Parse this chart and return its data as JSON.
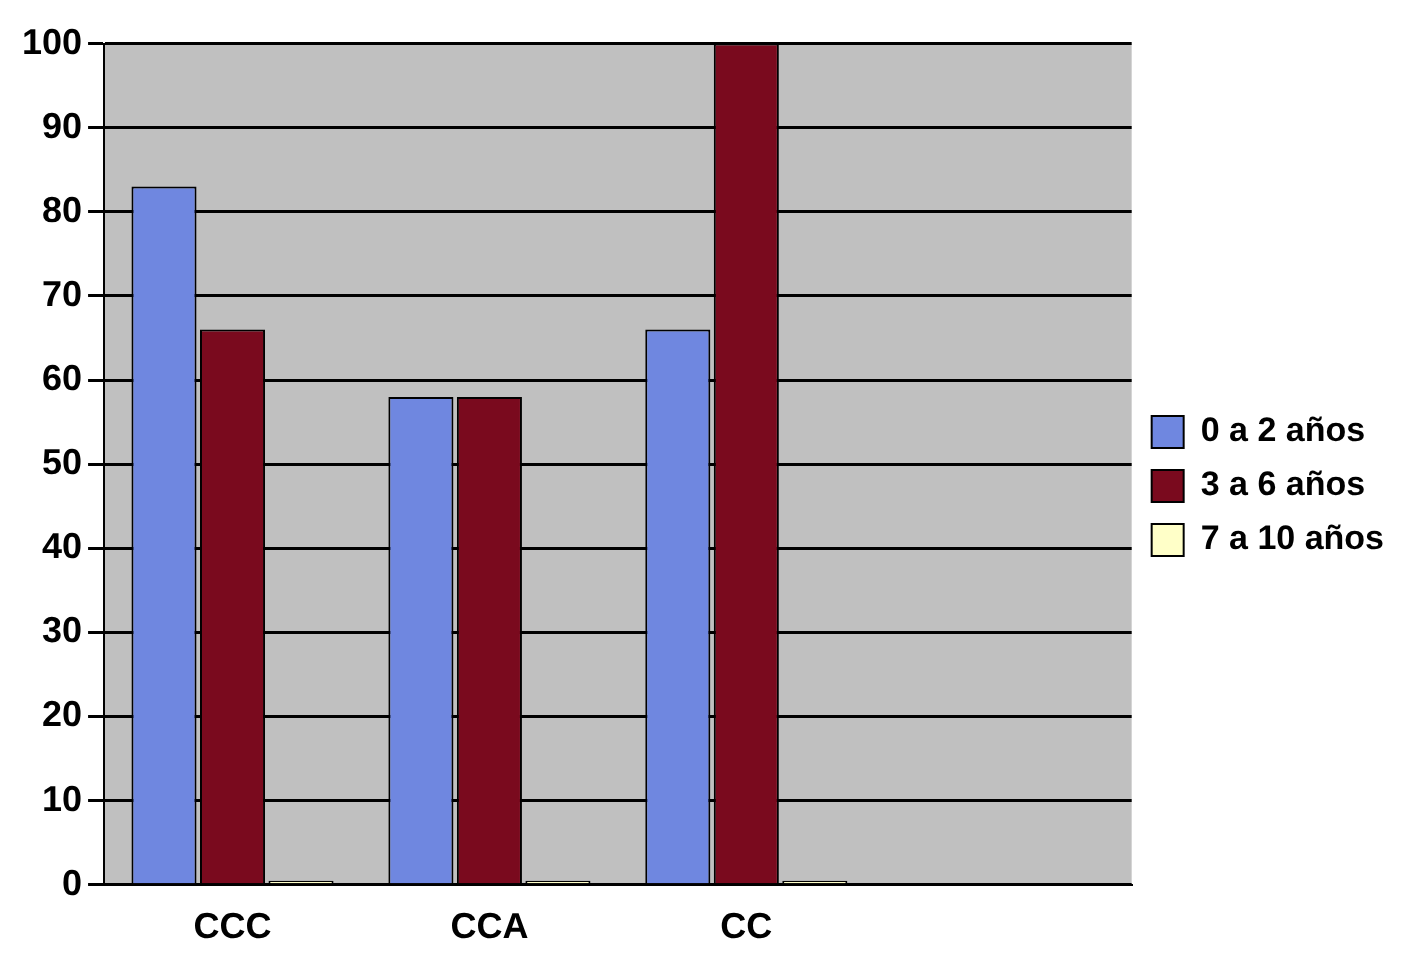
{
  "chart_data": {
    "type": "bar",
    "categories": [
      "CCC",
      "CCA",
      "CC",
      null
    ],
    "series": [
      {
        "name": "0 a 2 años",
        "color": "#6f87e0",
        "values": [
          83,
          58,
          66,
          null
        ]
      },
      {
        "name": "3 a 6 años",
        "color": "#7a0a1e",
        "values": [
          66,
          58,
          100,
          null
        ]
      },
      {
        "name": "7 a 10 años",
        "color": "#ffffc8",
        "values": [
          0,
          0,
          0,
          null
        ]
      }
    ],
    "ylim": [
      0,
      100
    ],
    "yticks": [
      0,
      10,
      20,
      30,
      40,
      50,
      60,
      70,
      80,
      90,
      100
    ],
    "grid": "y",
    "legend": "right"
  }
}
